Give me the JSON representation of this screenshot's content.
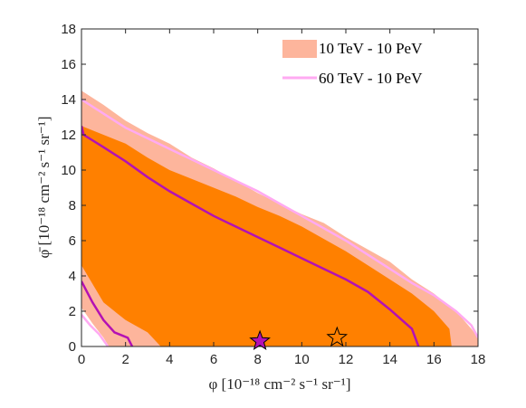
{
  "chart_data": {
    "type": "area",
    "xlabel": "φ [10⁻¹⁸ cm⁻² s⁻¹ sr⁻¹]",
    "ylabel": "φ̄ [10⁻¹⁸ cm⁻² s⁻¹ sr⁻¹]",
    "xlim": [
      0,
      18
    ],
    "ylim": [
      0,
      18
    ],
    "xticks": [
      0,
      2,
      4,
      6,
      8,
      10,
      12,
      14,
      16,
      18
    ],
    "yticks": [
      0,
      2,
      4,
      6,
      8,
      10,
      12,
      14,
      16,
      18
    ],
    "grid": false,
    "legend_position": "top-right",
    "series": [
      {
        "name": "10 TeV - 10 PeV",
        "kind": "filled-contours",
        "colors": {
          "outer": "#fdb59c",
          "inner": "#ff8000"
        },
        "outer_upper": [
          [
            0,
            14.5
          ],
          [
            1,
            13.7
          ],
          [
            2,
            12.8
          ],
          [
            3,
            12.1
          ],
          [
            4,
            11.5
          ],
          [
            5,
            10.7
          ],
          [
            6,
            10.1
          ],
          [
            7,
            9.4
          ],
          [
            8,
            8.7
          ],
          [
            9,
            8.1
          ],
          [
            10,
            7.5
          ],
          [
            11,
            7.0
          ],
          [
            12,
            6.2
          ],
          [
            13,
            5.5
          ],
          [
            14,
            4.8
          ],
          [
            15,
            3.8
          ],
          [
            16,
            3.0
          ],
          [
            17,
            2.0
          ],
          [
            17.7,
            1.0
          ],
          [
            18,
            0.5
          ],
          [
            18,
            0
          ]
        ],
        "outer_lower": [
          [
            1.25,
            0
          ],
          [
            1,
            0.5
          ],
          [
            0.5,
            1.3
          ],
          [
            0,
            2.2
          ]
        ],
        "inner_upper": [
          [
            0,
            12.5
          ],
          [
            1,
            12.0
          ],
          [
            2,
            11.5
          ],
          [
            3,
            10.7
          ],
          [
            4,
            10.0
          ],
          [
            5,
            9.5
          ],
          [
            6,
            9.0
          ],
          [
            7,
            8.5
          ],
          [
            8,
            7.9
          ],
          [
            9,
            7.4
          ],
          [
            10,
            6.8
          ],
          [
            11,
            6.1
          ],
          [
            12,
            5.4
          ],
          [
            13,
            4.6
          ],
          [
            14,
            3.8
          ],
          [
            15,
            3.0
          ],
          [
            16,
            2.0
          ],
          [
            16.7,
            1.0
          ],
          [
            16.8,
            0
          ]
        ],
        "inner_lower": [
          [
            3.6,
            0
          ],
          [
            3,
            0.8
          ],
          [
            2,
            1.5
          ],
          [
            1,
            2.5
          ],
          [
            0,
            4.6
          ]
        ]
      },
      {
        "name": "60 TeV - 10 PeV",
        "kind": "contour-lines",
        "colors": {
          "outer": "#ffaaf2",
          "inner": "#b411b4"
        },
        "outer_upper": [
          [
            0,
            14.0
          ],
          [
            1,
            13.2
          ],
          [
            2,
            12.4
          ],
          [
            3,
            11.8
          ],
          [
            4,
            11.2
          ],
          [
            5,
            10.6
          ],
          [
            6,
            10.0
          ],
          [
            7,
            9.4
          ],
          [
            8,
            8.8
          ],
          [
            9,
            8.1
          ],
          [
            10,
            7.4
          ],
          [
            11,
            6.7
          ],
          [
            12,
            6.0
          ],
          [
            13,
            5.2
          ],
          [
            14,
            4.4
          ],
          [
            15,
            3.6
          ],
          [
            16,
            2.9
          ],
          [
            17,
            2.0
          ],
          [
            17.7,
            1.2
          ],
          [
            18,
            0.5
          ]
        ],
        "outer_lower": [
          [
            1.2,
            0
          ],
          [
            0.8,
            0.7
          ],
          [
            0.4,
            1.2
          ],
          [
            0,
            1.8
          ]
        ],
        "inner_upper": [
          [
            0,
            12.5
          ],
          [
            0.1,
            12.0
          ],
          [
            1,
            11.3
          ],
          [
            2,
            10.5
          ],
          [
            3,
            9.6
          ],
          [
            4,
            8.8
          ],
          [
            5,
            8.1
          ],
          [
            6,
            7.4
          ],
          [
            7,
            6.8
          ],
          [
            8,
            6.2
          ],
          [
            9,
            5.6
          ],
          [
            10,
            5.0
          ],
          [
            11,
            4.4
          ],
          [
            12,
            3.8
          ],
          [
            13,
            3.1
          ],
          [
            14,
            2.1
          ],
          [
            15,
            1.0
          ],
          [
            15.3,
            0
          ]
        ],
        "inner_lower": [
          [
            2.3,
            0
          ],
          [
            2.1,
            0.5
          ],
          [
            1.5,
            0.8
          ],
          [
            1.0,
            1.5
          ],
          [
            0.5,
            2.5
          ],
          [
            0,
            3.7
          ]
        ]
      }
    ],
    "markers": [
      {
        "shape": "star",
        "x": 8.1,
        "y": 0.1,
        "fill": "#b411b4"
      },
      {
        "shape": "star",
        "x": 11.6,
        "y": 0.3,
        "fill": "none"
      }
    ]
  }
}
